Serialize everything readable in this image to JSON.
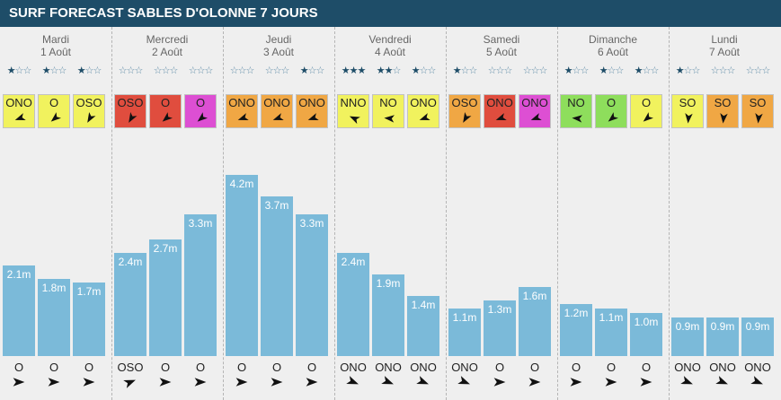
{
  "header": {
    "title": "SURF FORECAST SABLES D'OLONNE 7 JOURS"
  },
  "colors": {
    "header_bg": "#1e4d68",
    "bar": "#7bbad9",
    "wind_yellow": "#f1f25e",
    "wind_red": "#e04d3e",
    "wind_magenta": "#dd4fd3",
    "wind_orange": "#f0a744",
    "wind_green": "#8ede5c"
  },
  "chart_data": {
    "type": "bar",
    "unit": "m",
    "days": [
      {
        "name": "Mardi",
        "date": "1 Août",
        "slots": [
          {
            "stars": 1,
            "wind_dir": "ONO",
            "wind_color": "yellow",
            "wave_label": "2.1m",
            "swell_dir": "O"
          },
          {
            "stars": 1,
            "wind_dir": "O",
            "wind_color": "yellow",
            "wave_label": "1.8m",
            "swell_dir": "O"
          },
          {
            "stars": 1,
            "wind_dir": "OSO",
            "wind_color": "yellow",
            "wave_label": "1.7m",
            "swell_dir": "O"
          }
        ]
      },
      {
        "name": "Mercredi",
        "date": "2 Août",
        "slots": [
          {
            "stars": 0,
            "wind_dir": "OSO",
            "wind_color": "red",
            "wave_label": "2.4m",
            "swell_dir": "OSO"
          },
          {
            "stars": 0,
            "wind_dir": "O",
            "wind_color": "red",
            "wave_label": "2.7m",
            "swell_dir": "O"
          },
          {
            "stars": 0,
            "wind_dir": "O",
            "wind_color": "magenta",
            "wave_label": "3.3m",
            "swell_dir": "O"
          }
        ]
      },
      {
        "name": "Jeudi",
        "date": "3 Août",
        "slots": [
          {
            "stars": 0,
            "wind_dir": "ONO",
            "wind_color": "orange",
            "wave_label": "4.2m",
            "swell_dir": "O"
          },
          {
            "stars": 0,
            "wind_dir": "ONO",
            "wind_color": "orange",
            "wave_label": "3.7m",
            "swell_dir": "O"
          },
          {
            "stars": 1,
            "wind_dir": "ONO",
            "wind_color": "orange",
            "wave_label": "3.3m",
            "swell_dir": "O"
          }
        ]
      },
      {
        "name": "Vendredi",
        "date": "4 Août",
        "slots": [
          {
            "stars": 3,
            "wind_dir": "NNO",
            "wind_color": "yellow",
            "wave_label": "2.4m",
            "swell_dir": "ONO"
          },
          {
            "stars": 2,
            "wind_dir": "NO",
            "wind_color": "yellow",
            "wave_label": "1.9m",
            "swell_dir": "ONO"
          },
          {
            "stars": 1,
            "wind_dir": "ONO",
            "wind_color": "yellow",
            "wave_label": "1.4m",
            "swell_dir": "ONO"
          }
        ]
      },
      {
        "name": "Samedi",
        "date": "5 Août",
        "slots": [
          {
            "stars": 1,
            "wind_dir": "OSO",
            "wind_color": "orange",
            "wave_label": "1.1m",
            "swell_dir": "ONO"
          },
          {
            "stars": 0,
            "wind_dir": "ONO",
            "wind_color": "red",
            "wave_label": "1.3m",
            "swell_dir": "O"
          },
          {
            "stars": 0,
            "wind_dir": "ONO",
            "wind_color": "magenta",
            "wave_label": "1.6m",
            "swell_dir": "O"
          }
        ]
      },
      {
        "name": "Dimanche",
        "date": "6 Août",
        "slots": [
          {
            "stars": 1,
            "wind_dir": "NO",
            "wind_color": "green",
            "wave_label": "1.2m",
            "swell_dir": "O"
          },
          {
            "stars": 1,
            "wind_dir": "O",
            "wind_color": "green",
            "wave_label": "1.1m",
            "swell_dir": "O"
          },
          {
            "stars": 1,
            "wind_dir": "O",
            "wind_color": "yellow",
            "wave_label": "1.0m",
            "swell_dir": "O"
          }
        ]
      },
      {
        "name": "Lundi",
        "date": "7 Août",
        "slots": [
          {
            "stars": 1,
            "wind_dir": "SO",
            "wind_color": "yellow",
            "wave_label": "0.9m",
            "swell_dir": "ONO"
          },
          {
            "stars": 0,
            "wind_dir": "SO",
            "wind_color": "orange",
            "wave_label": "0.9m",
            "swell_dir": "ONO"
          },
          {
            "stars": 0,
            "wind_dir": "SO",
            "wind_color": "orange",
            "wave_label": "0.9m",
            "swell_dir": "ONO"
          }
        ]
      }
    ]
  }
}
